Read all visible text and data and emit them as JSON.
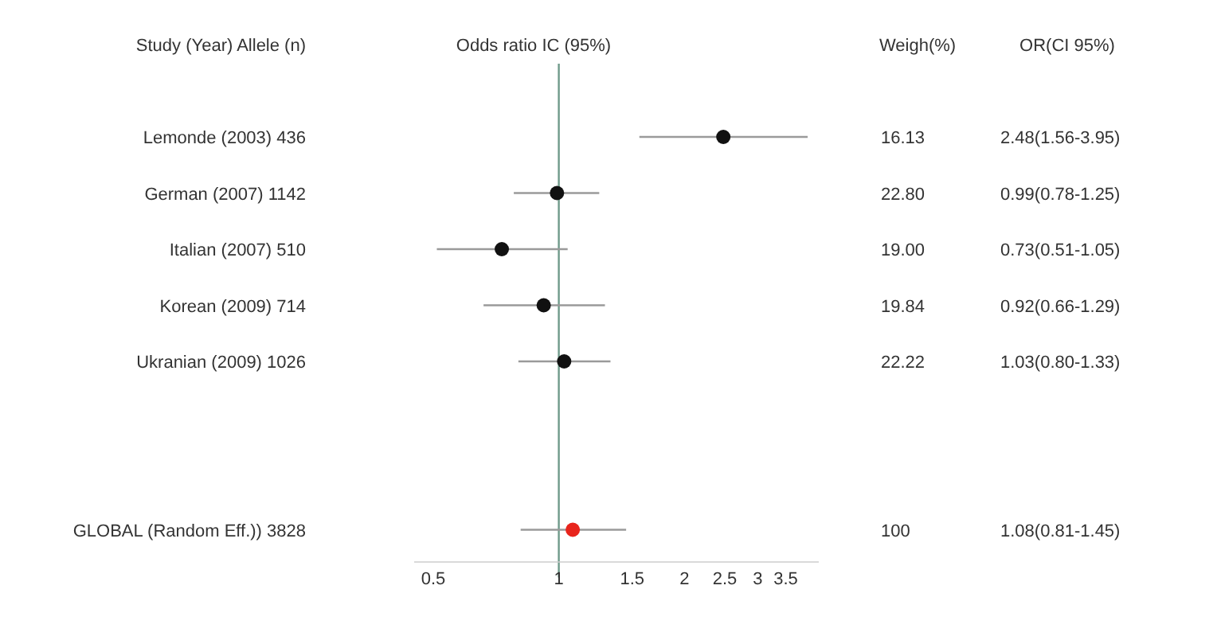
{
  "chart_data": {
    "type": "scatter",
    "orientation": "horizontal",
    "title": "Odds ratio IC (95%)",
    "ylabel": "Study (Year) Allele (n)",
    "categories": [
      "Lemonde (2003)  436",
      "German (2007) 1142",
      "Italian (2007)  510",
      "Korean (2009)  714",
      "Ukranian (2009) 1026",
      null,
      null,
      "GLOBAL (Random Eff.)) 3828"
    ],
    "values": [
      2.48,
      0.99,
      0.73,
      0.92,
      1.03,
      null,
      null,
      1.08
    ],
    "errors": [
      [
        1.56,
        3.95
      ],
      [
        0.78,
        1.25
      ],
      [
        0.51,
        1.05
      ],
      [
        0.66,
        1.29
      ],
      [
        0.8,
        1.33
      ],
      null,
      null,
      [
        0.81,
        1.45
      ]
    ],
    "colors": [
      "#111111",
      "#111111",
      "#111111",
      "#111111",
      "#111111",
      null,
      null,
      "#e8241c"
    ],
    "value_labels": [
      "2.48(1.56-3.95)",
      "0.99(0.78-1.25)",
      "0.73(0.51-1.05)",
      "0.92(0.66-1.29)",
      "1.03(0.80-1.33)",
      null,
      null,
      "1.08(0.81-1.45)"
    ],
    "annotations": [
      "Weigh(%)",
      "OR(CI 95%)",
      "16.13",
      "22.80",
      "19.00",
      "19.84",
      "22.22",
      "100"
    ],
    "log": "x",
    "xlim": [
      0.45,
      4.2
    ],
    "xticks": [
      0.5,
      1,
      1.5,
      2,
      2.5,
      3,
      3.5
    ],
    "ref_lines": [
      {
        "axis": "x",
        "value": 1,
        "color": "#6f9a8a"
      }
    ],
    "marker": "circle",
    "grid": false
  }
}
